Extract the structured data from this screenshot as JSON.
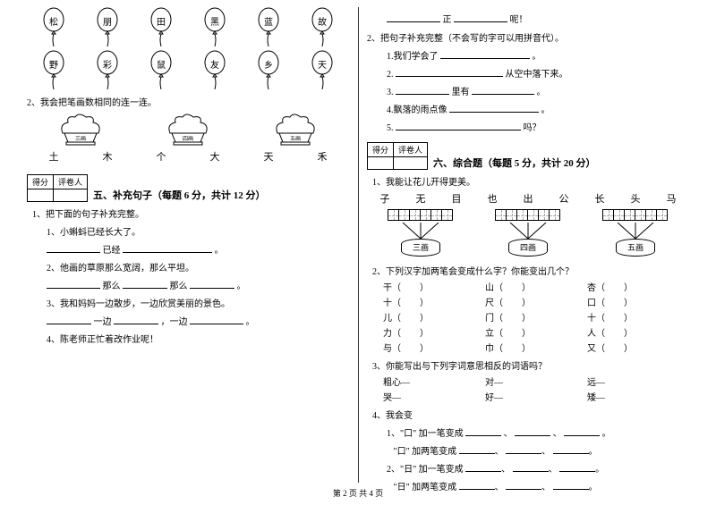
{
  "footer": "第 2 页 共 4 页",
  "left": {
    "balloons_top": [
      "松",
      "朋",
      "田",
      "黑",
      "蓝",
      "故"
    ],
    "balloons_bottom": [
      "野",
      "彩",
      "鼠",
      "友",
      "乡",
      "天"
    ],
    "q2": "2、我会把笔画数相同的连一连。",
    "basket_labels": [
      "三画",
      "四画",
      "五画"
    ],
    "chars": [
      "土",
      "木",
      "个",
      "大",
      "天",
      "禾"
    ],
    "score_head": [
      "得分",
      "评卷人"
    ],
    "section5": "五、补充句子（每题 6 分，共计 12 分）",
    "s5_q1": "1、把下面的句子补充完整。",
    "s5_1": "1、小蝌蚪已经长大了。",
    "s5_1b_a": "已经",
    "s5_1b_b": "。",
    "s5_2": "2、他画的草原那么宽阔，那么平坦。",
    "s5_2b_a": "那么",
    "s5_2b_b": "那么",
    "s5_2b_c": "。",
    "s5_3": "3、我和妈妈一边散步，一边欣赏美丽的景色。",
    "s5_3b_a": "一边",
    "s5_3b_b": "，一边",
    "s5_3b_c": "。",
    "s5_4": "4、陈老师正忙着改作业呢！"
  },
  "right": {
    "top_a": "正",
    "top_b": "呢！",
    "q2": "2、把句子补充完整（不会写的字可以用拼音代）。",
    "q2_1_a": "1.我们学会了",
    "q2_1_b": "。",
    "q2_2_a": "2.",
    "q2_2_b": "从空中落下来。",
    "q2_3_a": "3.",
    "q2_3_b": "里有",
    "q2_3_c": "。",
    "q2_4": "4.飘落的雨点像",
    "q2_4_b": "。",
    "q2_5_a": "5.",
    "q2_5_b": "吗？",
    "score_head": [
      "得分",
      "评卷人"
    ],
    "section6": "六、综合题（每题 5 分，共计 20 分）",
    "s6_q1": "1、我能让花儿开得更美。",
    "flower_chars": [
      "子",
      "无",
      "目",
      "也",
      "出",
      "公",
      "长",
      "头",
      "马"
    ],
    "pots": [
      "三画",
      "四画",
      "五画"
    ],
    "s6_q2": "2、下列汉字加两笔会变成什么字？你能变出几个？",
    "q2_rows": [
      [
        "干（",
        "）",
        "山（",
        "）",
        "杏（",
        "）"
      ],
      [
        "十（",
        "）",
        "尺（",
        "）",
        "口（",
        "）"
      ],
      [
        "儿（",
        "）",
        "门（",
        "）",
        "十（",
        "）"
      ],
      [
        "力（",
        "）",
        "立（",
        "）",
        "人（",
        "）"
      ],
      [
        "与（",
        "）",
        "巾（",
        "）",
        "又（",
        "）"
      ]
    ],
    "s6_q3": "3、你能写出与下列字词意思相反的词语吗？",
    "q3_rows": [
      [
        "粗心—",
        "对—",
        "远—"
      ],
      [
        "哭—",
        "好—",
        "矮—"
      ]
    ],
    "s6_q4": "4、我会变",
    "q4_1a": "1、\"口\" 加一笔变成",
    "q4_1b": "、",
    "q4_1c": "。",
    "q4_2a": "\"口\" 加两笔变成",
    "q4_3a": "2、\"日\" 加一笔变成",
    "q4_4a": "\"日\" 加两笔变成"
  }
}
